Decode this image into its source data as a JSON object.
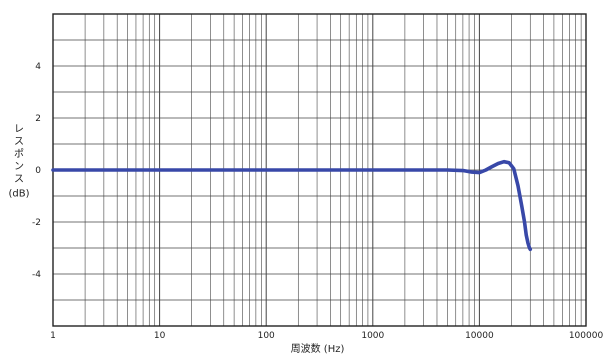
{
  "chart_data": {
    "type": "line",
    "title": "",
    "xlabel": "周波数 (Hz)",
    "ylabel_lines": [
      "レ",
      "ス",
      "ポ",
      "ン",
      "ス",
      "(dB)"
    ],
    "x_scale": "log",
    "xlim": [
      1,
      100000
    ],
    "ylim": [
      -6,
      6
    ],
    "x_ticks": [
      1,
      10,
      100,
      1000,
      10000,
      100000
    ],
    "x_tick_labels": [
      "1",
      "10",
      "100",
      "1000",
      "10000",
      "100000"
    ],
    "y_ticks": [
      4,
      2,
      0,
      -2,
      -4
    ],
    "y_tick_labels": [
      "4",
      "2",
      "0",
      "-2",
      "-4"
    ],
    "grid": true,
    "legend": "none",
    "colors": {
      "line": "#3848a8",
      "grid": "#444444",
      "frame": "#222222",
      "text": "#222222"
    },
    "series": [
      {
        "x": [
          1,
          10,
          100,
          1000,
          5000,
          7000,
          8500,
          10000,
          11500,
          13000,
          15000,
          17000,
          19000,
          21000,
          23000,
          25000,
          26500,
          27500,
          28500,
          29500,
          30000
        ],
        "y": [
          0,
          0,
          0,
          0,
          0,
          -0.02,
          -0.08,
          -0.1,
          0,
          0.12,
          0.25,
          0.32,
          0.28,
          0.05,
          -0.6,
          -1.4,
          -2.0,
          -2.5,
          -2.8,
          -3.0,
          -3.05
        ]
      }
    ]
  }
}
